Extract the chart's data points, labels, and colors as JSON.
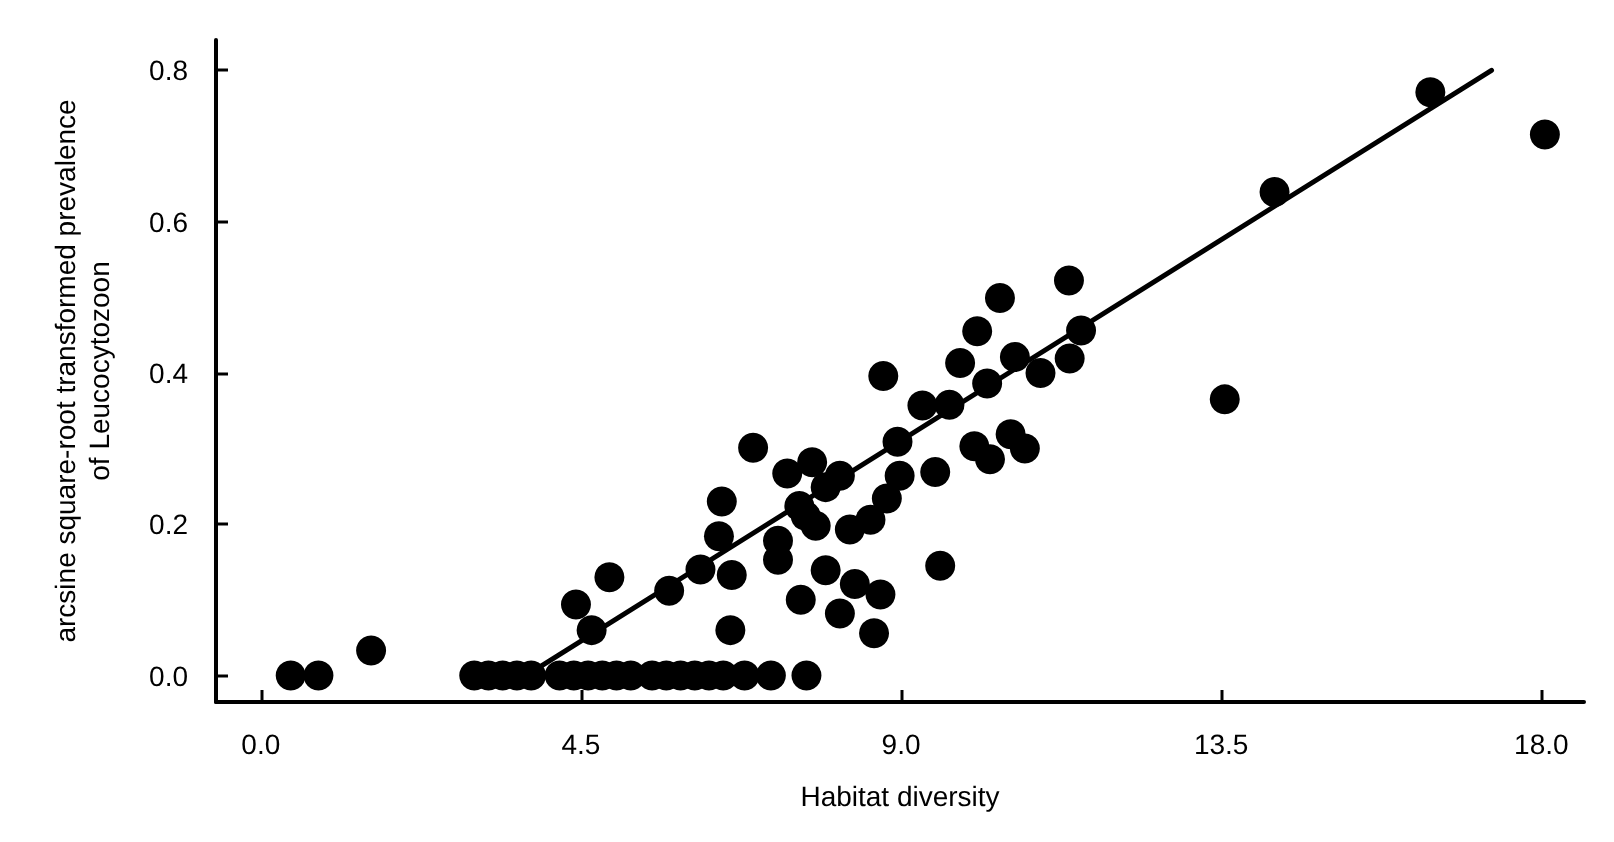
{
  "chart_data": {
    "type": "scatter",
    "xlabel": "Habitat diversity",
    "ylabel": "arcsine square-root transformed prevalence\nof Leucocytozoon",
    "xlim": [
      -0.63,
      18.6
    ],
    "ylim": [
      -0.035,
      0.84
    ],
    "xticks": [
      {
        "value": 0,
        "label": "0.0"
      },
      {
        "value": 4.5,
        "label": "4.5"
      },
      {
        "value": 9,
        "label": "9.0"
      },
      {
        "value": 13.5,
        "label": "13.5"
      },
      {
        "value": 18,
        "label": "18.0"
      }
    ],
    "yticks": [
      {
        "value": 0,
        "label": "0.0"
      },
      {
        "value": 0.2,
        "label": "0.2"
      },
      {
        "value": 0.4,
        "label": "0.4"
      },
      {
        "value": 0.6,
        "label": "0.6"
      },
      {
        "value": 0.8,
        "label": "0.8"
      }
    ],
    "grid": false,
    "marker": "circle",
    "series": [
      {
        "color": "#000000",
        "x": [
          0.42,
          0.81,
          1.55,
          3.0,
          3.2,
          3.4,
          3.6,
          3.8,
          4.2,
          4.4,
          4.6,
          4.8,
          5.0,
          5.2,
          5.5,
          5.7,
          5.9,
          6.1,
          6.3,
          6.5,
          6.8,
          7.17,
          7.67,
          16.44,
          18.05,
          14.25,
          13.55,
          11.36,
          11.53,
          11.37,
          10.39,
          10.07,
          9.83,
          10.6,
          10.96,
          10.21,
          9.68,
          9.3,
          8.75,
          8.95,
          10.03,
          10.25,
          10.54,
          10.74,
          9.48,
          8.98,
          8.14,
          7.94,
          8.8,
          8.57,
          8.28,
          7.8,
          7.94,
          8.35,
          8.71,
          8.14,
          8.62,
          9.55,
          7.75,
          6.92,
          7.4,
          6.48,
          6.44,
          7.27,
          7.27,
          7.57,
          7.66,
          6.18,
          6.62,
          5.74,
          4.9,
          4.43,
          4.65,
          6.6,
          7.59
        ],
        "values": [
          0,
          0,
          0.033,
          0,
          0,
          0,
          0,
          0,
          0,
          0,
          0,
          0,
          0,
          0,
          0,
          0,
          0,
          0,
          0,
          0,
          0,
          0,
          0,
          0.771,
          0.715,
          0.639,
          0.365,
          0.522,
          0.456,
          0.419,
          0.499,
          0.455,
          0.413,
          0.421,
          0.4,
          0.386,
          0.358,
          0.357,
          0.396,
          0.309,
          0.303,
          0.286,
          0.319,
          0.3,
          0.269,
          0.264,
          0.264,
          0.249,
          0.234,
          0.206,
          0.193,
          0.198,
          0.139,
          0.121,
          0.107,
          0.082,
          0.056,
          0.145,
          0.282,
          0.301,
          0.267,
          0.23,
          0.184,
          0.178,
          0.153,
          0.224,
          0.211,
          0.14,
          0.133,
          0.112,
          0.13,
          0.094,
          0.06,
          0.06,
          0.1
        ]
      },
      {
        "type": "line",
        "color": "#000000",
        "marker": "none",
        "line_style": "solid",
        "x": [
          3.9,
          17.3
        ],
        "values": [
          0.01,
          0.8
        ]
      }
    ]
  }
}
